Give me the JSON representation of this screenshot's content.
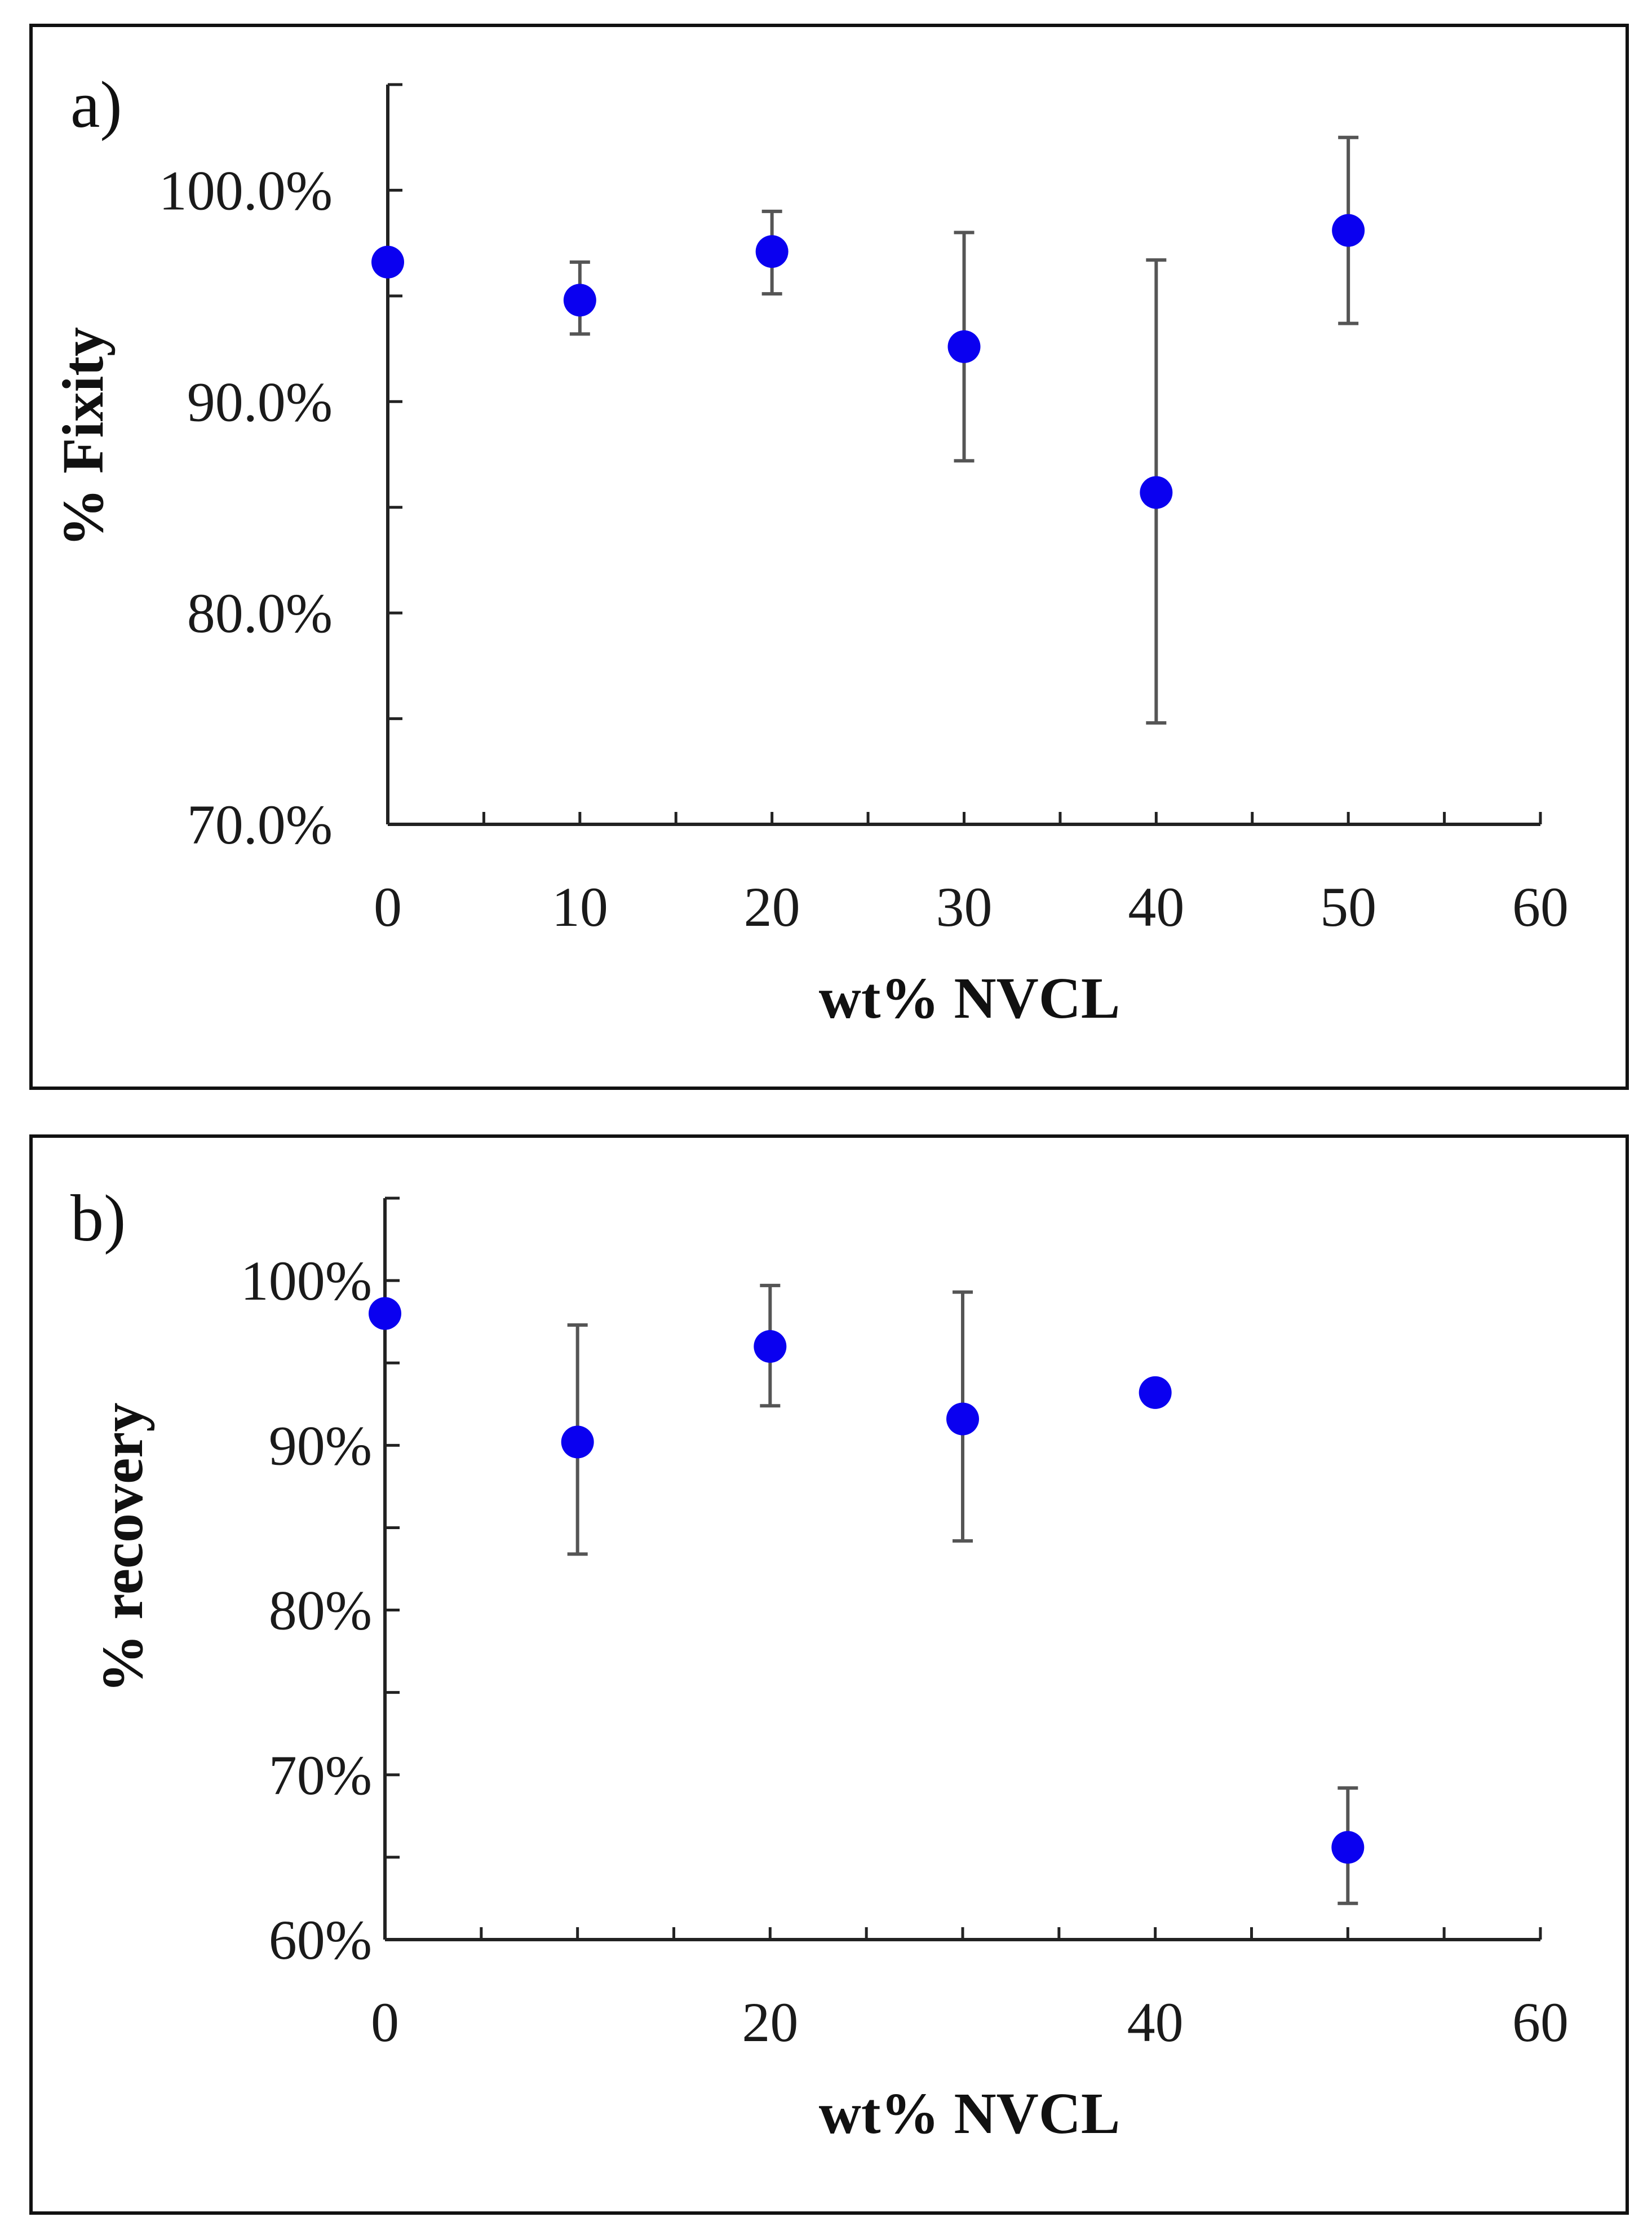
{
  "chart_data": [
    {
      "type": "scatter",
      "panel_label": "a)",
      "xlabel": "wt% NVCL",
      "ylabel": "% Fixity",
      "xlim": [
        0,
        60
      ],
      "ylim": [
        0.7,
        1.05
      ],
      "x_ticks": [
        0,
        10,
        20,
        30,
        40,
        50,
        60
      ],
      "x_tick_labels": [
        "0",
        "10",
        "20",
        "30",
        "40",
        "50",
        "60"
      ],
      "x_minor_step": 5,
      "y_ticks": [
        0.7,
        0.8,
        0.9,
        1.0
      ],
      "y_tick_labels": [
        "70.0%",
        "80.0%",
        "90.0%",
        "100.0%"
      ],
      "y_minor_step": 0.05,
      "marker_color": "#0a00f0",
      "errorbar_color": "#555555",
      "series": [
        {
          "name": "% Fixity",
          "x": [
            0,
            10,
            20,
            30,
            40,
            50
          ],
          "y": [
            0.966,
            0.948,
            0.971,
            0.926,
            0.857,
            0.981
          ],
          "err_low": [
            null,
            0.932,
            0.951,
            0.872,
            0.748,
            0.937
          ],
          "err_high": [
            null,
            0.966,
            0.99,
            0.98,
            0.967,
            1.025
          ]
        }
      ]
    },
    {
      "type": "scatter",
      "panel_label": "b)",
      "xlabel": "wt% NVCL",
      "ylabel": "% recovery",
      "xlim": [
        0,
        60
      ],
      "ylim": [
        0.6,
        1.05
      ],
      "x_ticks": [
        0,
        20,
        40,
        60
      ],
      "x_tick_labels": [
        "0",
        "20",
        "40",
        "60"
      ],
      "x_minor_step": 5,
      "y_ticks": [
        0.6,
        0.7,
        0.8,
        0.9,
        1.0
      ],
      "y_tick_labels": [
        "60%",
        "70%",
        "80%",
        "90%",
        "100%"
      ],
      "y_minor_step": 0.05,
      "marker_color": "#0a00f0",
      "errorbar_color": "#555555",
      "series": [
        {
          "name": "% recovery",
          "x": [
            0,
            10,
            20,
            30,
            40,
            50
          ],
          "y": [
            0.98,
            0.902,
            0.96,
            0.916,
            0.932,
            0.656
          ],
          "err_low": [
            null,
            0.834,
            0.924,
            0.842,
            null,
            0.622
          ],
          "err_high": [
            null,
            0.973,
            0.997,
            0.993,
            null,
            0.692
          ]
        }
      ]
    }
  ]
}
